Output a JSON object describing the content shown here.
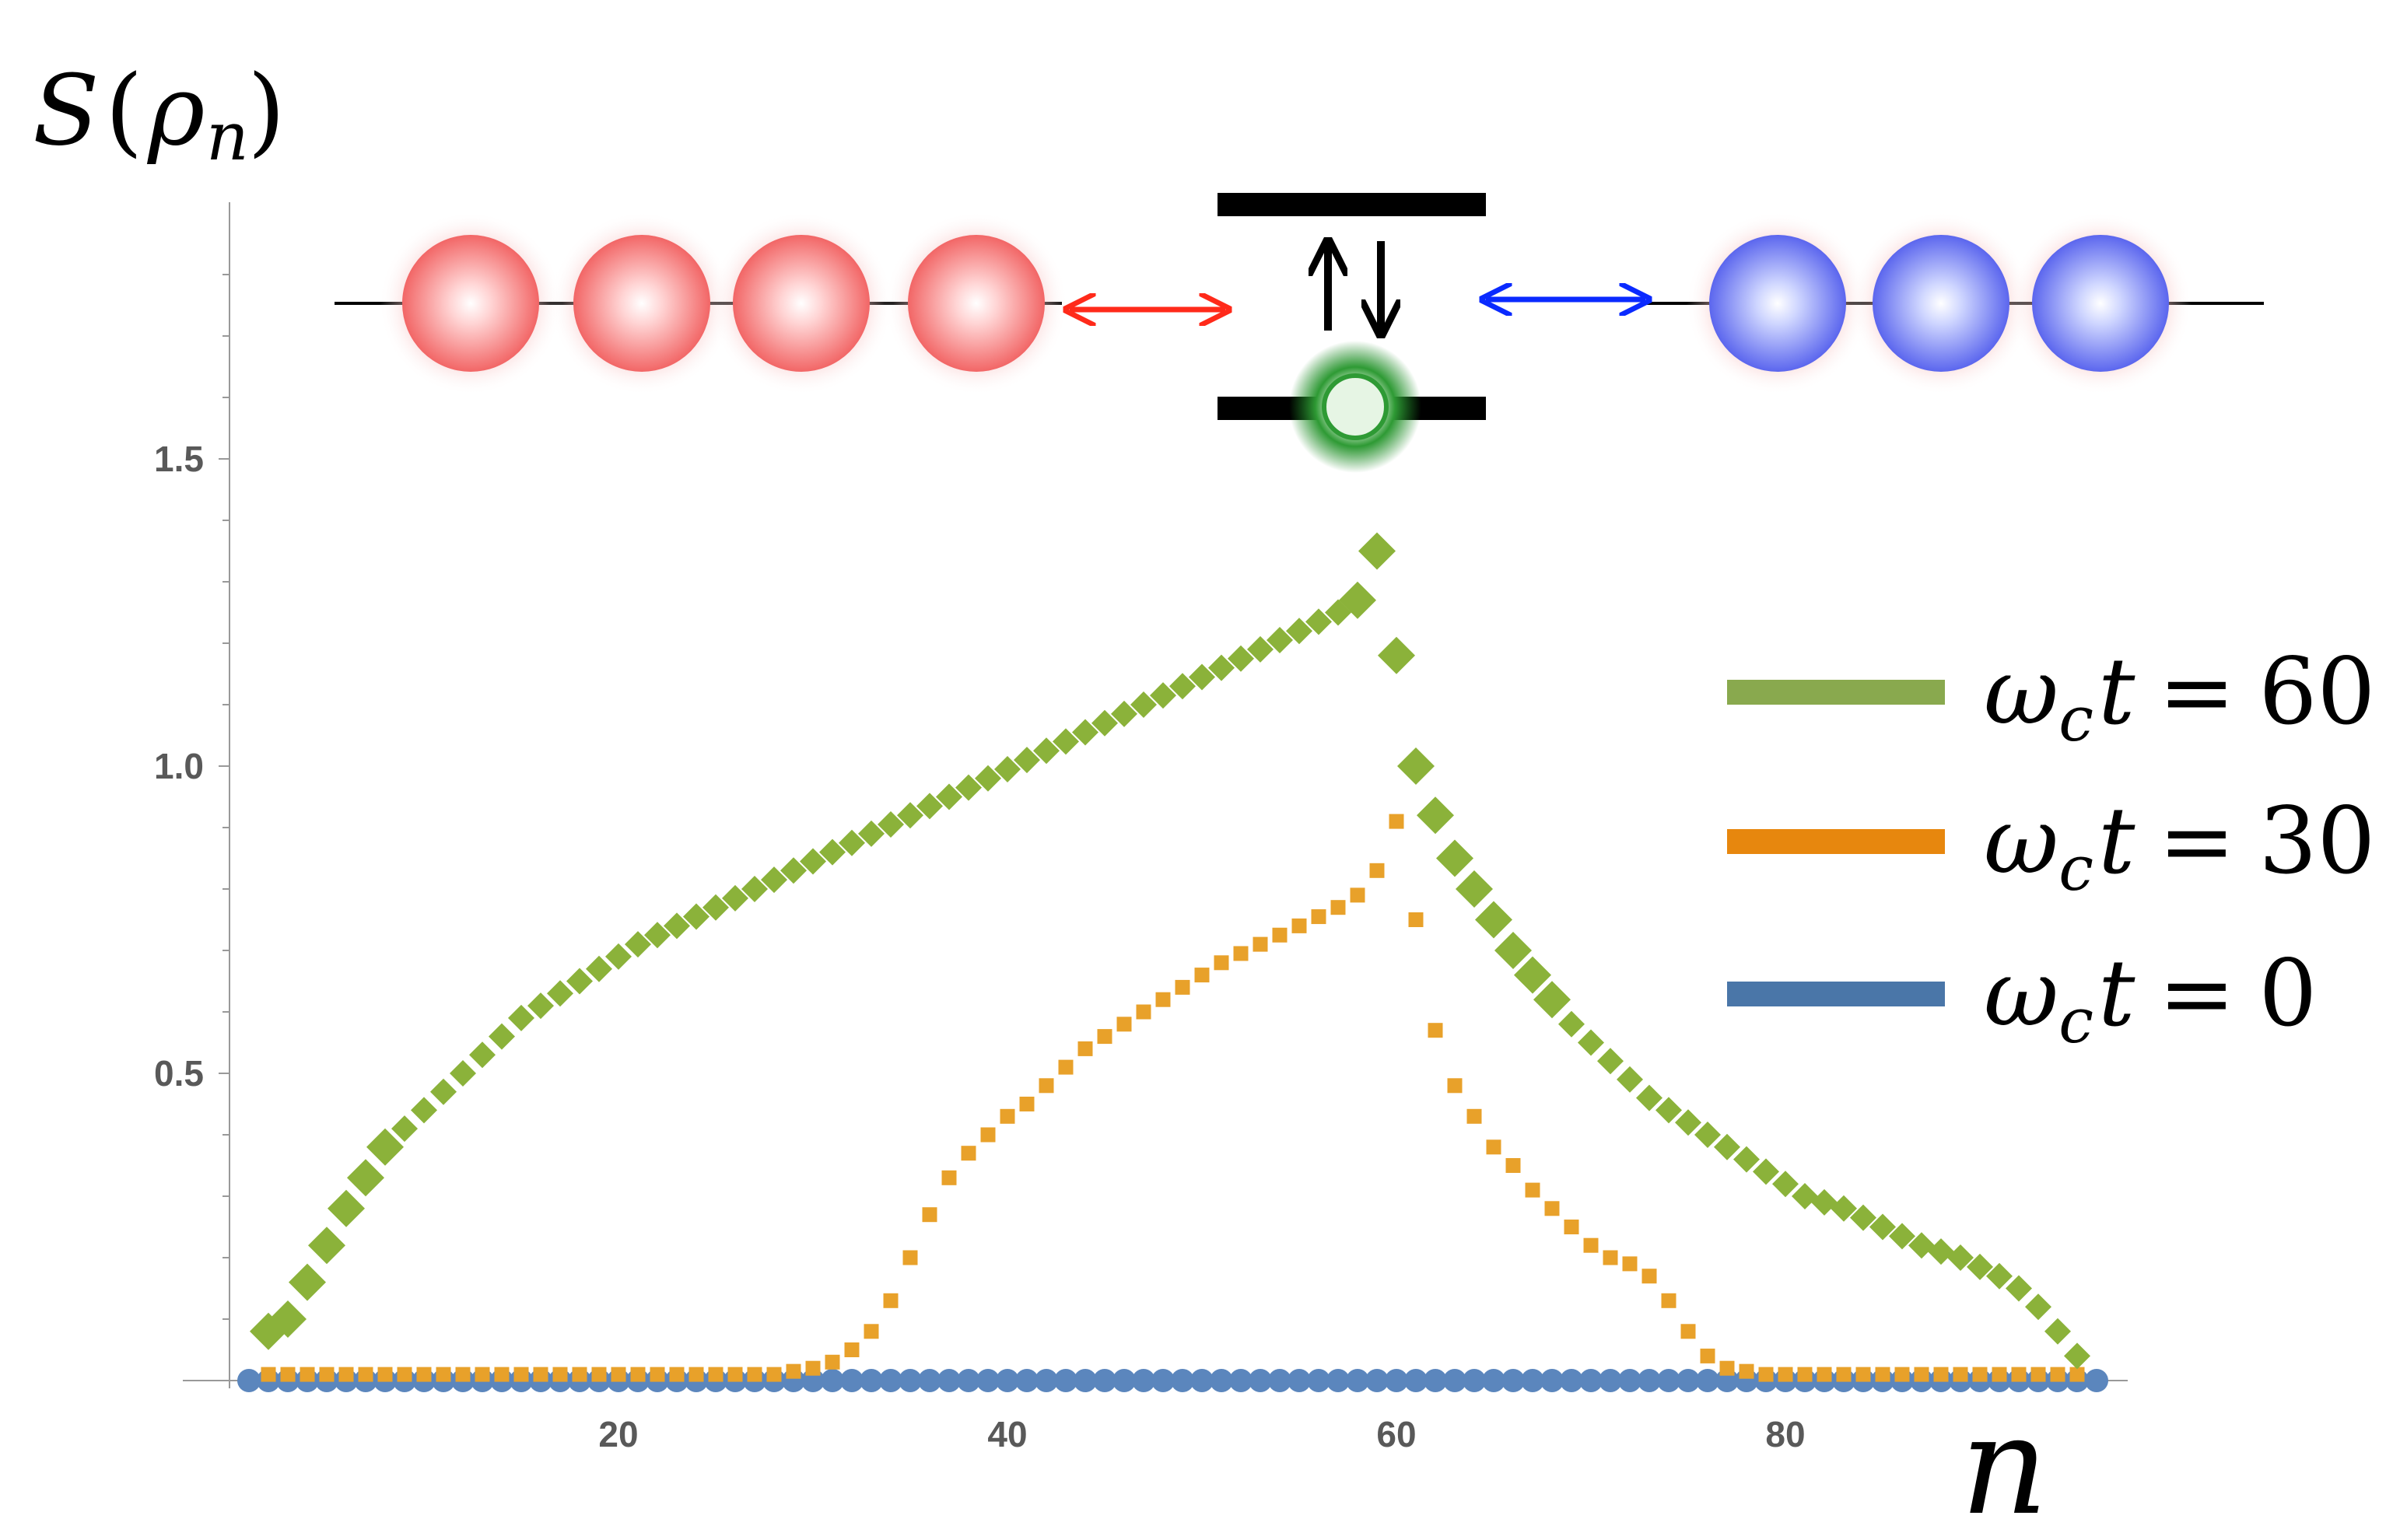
{
  "chart_data": {
    "type": "scatter",
    "ylabel": "S(ρ_n)",
    "xlabel": "n",
    "xlim": [
      0,
      98
    ],
    "ylim": [
      0,
      1.9
    ],
    "x_ticks": [
      20,
      40,
      60,
      80
    ],
    "y_ticks": [
      0.5,
      1.0,
      1.5
    ],
    "x_tick_labels": [
      "20",
      "40",
      "60",
      "80"
    ],
    "y_tick_labels": [
      "0.5",
      "1.0",
      "1.5"
    ],
    "legend_placement": "right",
    "series": [
      {
        "name": "ω_c t = 60",
        "legend_text": {
          "lhs": "ω",
          "sub": "c",
          "var": "t",
          "eq": "=",
          "val": "60"
        },
        "color": "#8bb23a",
        "marker": "diamond",
        "x": [
          2,
          3,
          4,
          5,
          6,
          7,
          8,
          9,
          10,
          11,
          12,
          13,
          14,
          15,
          16,
          17,
          18,
          19,
          20,
          21,
          22,
          23,
          24,
          25,
          26,
          27,
          28,
          29,
          30,
          31,
          32,
          33,
          34,
          35,
          36,
          37,
          38,
          39,
          40,
          41,
          42,
          43,
          44,
          45,
          46,
          47,
          48,
          49,
          50,
          51,
          52,
          53,
          54,
          55,
          56,
          57,
          58,
          59,
          60,
          61,
          62,
          63,
          64,
          65,
          66,
          67,
          68,
          69,
          70,
          71,
          72,
          73,
          74,
          75,
          76,
          77,
          78,
          79,
          80,
          81,
          82,
          83,
          84,
          85,
          86,
          87,
          88,
          89,
          90,
          91,
          92,
          93,
          94,
          95
        ],
        "y": [
          0.08,
          0.1,
          0.16,
          0.22,
          0.28,
          0.33,
          0.38,
          0.41,
          0.44,
          0.47,
          0.5,
          0.53,
          0.56,
          0.59,
          0.61,
          0.63,
          0.65,
          0.67,
          0.69,
          0.71,
          0.725,
          0.74,
          0.755,
          0.77,
          0.785,
          0.8,
          0.815,
          0.83,
          0.845,
          0.86,
          0.875,
          0.89,
          0.905,
          0.92,
          0.935,
          0.95,
          0.965,
          0.98,
          0.995,
          1.01,
          1.025,
          1.04,
          1.055,
          1.07,
          1.085,
          1.1,
          1.115,
          1.13,
          1.145,
          1.16,
          1.175,
          1.19,
          1.205,
          1.22,
          1.235,
          1.25,
          1.27,
          1.35,
          1.18,
          1.0,
          0.92,
          0.85,
          0.8,
          0.75,
          0.7,
          0.66,
          0.62,
          0.58,
          0.55,
          0.52,
          0.49,
          0.46,
          0.44,
          0.42,
          0.4,
          0.38,
          0.36,
          0.34,
          0.32,
          0.3,
          0.29,
          0.28,
          0.265,
          0.25,
          0.235,
          0.22,
          0.21,
          0.2,
          0.185,
          0.17,
          0.15,
          0.12,
          0.08,
          0.04
        ],
        "sizes_note": "large markers at 4-8 and 58-66"
      },
      {
        "name": "ω_c t = 30",
        "legend_text": {
          "lhs": "ω",
          "sub": "c",
          "var": "t",
          "eq": "=",
          "val": "30"
        },
        "color": "#e8a12a",
        "marker": "square",
        "x": [
          2,
          3,
          4,
          5,
          6,
          7,
          8,
          9,
          10,
          11,
          12,
          13,
          14,
          15,
          16,
          17,
          18,
          19,
          20,
          21,
          22,
          23,
          24,
          25,
          26,
          27,
          28,
          29,
          30,
          31,
          32,
          33,
          34,
          35,
          36,
          37,
          38,
          39,
          40,
          41,
          42,
          43,
          44,
          45,
          46,
          47,
          48,
          49,
          50,
          51,
          52,
          53,
          54,
          55,
          56,
          57,
          58,
          59,
          60,
          61,
          62,
          63,
          64,
          65,
          66,
          67,
          68,
          69,
          70,
          71,
          72,
          73,
          74,
          75,
          76,
          77,
          78,
          79,
          80,
          81,
          82,
          83,
          84,
          85,
          86,
          87,
          88,
          89,
          90,
          91,
          92,
          93,
          94,
          95
        ],
        "y": [
          0.01,
          0.01,
          0.01,
          0.01,
          0.01,
          0.01,
          0.01,
          0.01,
          0.01,
          0.01,
          0.01,
          0.01,
          0.01,
          0.01,
          0.01,
          0.01,
          0.01,
          0.01,
          0.01,
          0.01,
          0.01,
          0.01,
          0.01,
          0.01,
          0.01,
          0.01,
          0.01,
          0.015,
          0.02,
          0.03,
          0.05,
          0.08,
          0.13,
          0.2,
          0.27,
          0.33,
          0.37,
          0.4,
          0.43,
          0.45,
          0.48,
          0.51,
          0.54,
          0.56,
          0.58,
          0.6,
          0.62,
          0.64,
          0.66,
          0.68,
          0.695,
          0.71,
          0.725,
          0.74,
          0.755,
          0.77,
          0.79,
          0.83,
          0.91,
          0.75,
          0.57,
          0.48,
          0.43,
          0.38,
          0.35,
          0.31,
          0.28,
          0.25,
          0.22,
          0.2,
          0.19,
          0.17,
          0.13,
          0.08,
          0.04,
          0.02,
          0.015,
          0.01,
          0.01,
          0.01,
          0.01,
          0.01,
          0.01,
          0.01,
          0.01,
          0.01,
          0.01,
          0.01,
          0.01,
          0.01,
          0.01,
          0.01,
          0.01,
          0.01
        ]
      },
      {
        "name": "ω_c t = 0",
        "legend_text": {
          "lhs": "ω",
          "sub": "c",
          "var": "t",
          "eq": "=",
          "val": "0"
        },
        "color": "#5b86bd",
        "marker": "circle",
        "x_start": 1,
        "x_end": 96,
        "value": 0
      }
    ],
    "legend_colors": [
      "#89a94e",
      "#e7870e",
      "#4a76a8"
    ]
  },
  "inset": {
    "left_chain": {
      "count": 4,
      "color": "#f05a5a",
      "arrow_color": "#ff2a1a"
    },
    "right_chain": {
      "count": 3,
      "color": "#5a6af0",
      "arrow_color": "#0a2aff"
    },
    "center_atom": {
      "color": "#1f9a2a",
      "levels": 2
    }
  }
}
